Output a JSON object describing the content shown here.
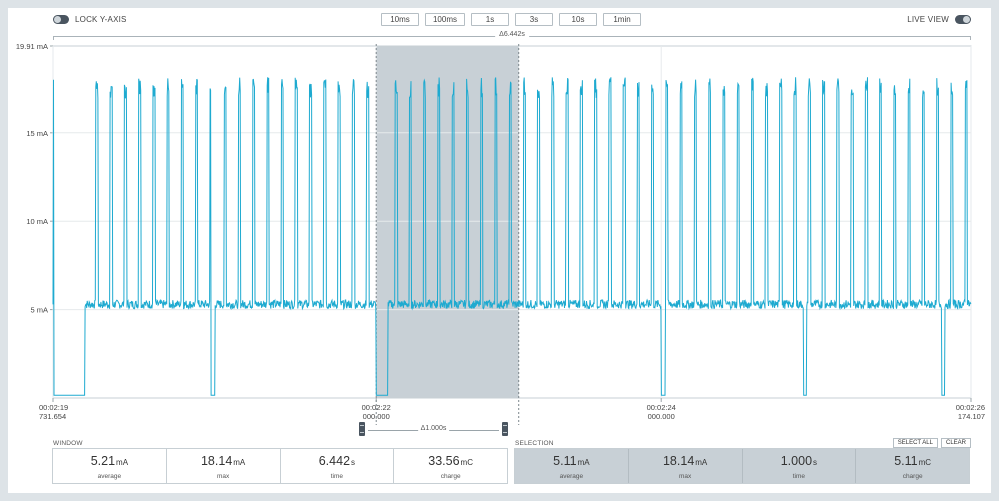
{
  "controls": {
    "lock_y_axis": "LOCK Y-AXIS",
    "live_view": "LIVE VIEW",
    "zoom_buttons": [
      "10ms",
      "100ms",
      "1s",
      "3s",
      "10s",
      "1min"
    ]
  },
  "window_delta": "Δ6.442s",
  "selection_delta": "Δ1.000s",
  "colors": {
    "trace": "#1eaad0",
    "selection": "#c8d0d6",
    "handle": "#4a5560"
  },
  "chart_data": {
    "type": "line",
    "ylabel": "",
    "y_ticks": [
      "19.91 mA",
      "15 mA",
      "10 mA",
      "5 mA"
    ],
    "y_tick_values": [
      19.91,
      15,
      10,
      5
    ],
    "ylim": [
      0,
      19.91
    ],
    "xlim_s": [
      139.731654,
      146.174107
    ],
    "x_ticks": [
      {
        "time": "00:02:19",
        "sub": "731.654",
        "t": 139.731654
      },
      {
        "time": "00:02:22",
        "sub": "000.000",
        "t": 142.0
      },
      {
        "time": "00:02:24",
        "sub": "000.000",
        "t": 144.0
      },
      {
        "time": "00:02:26",
        "sub": "174.107",
        "t": 146.174107
      }
    ],
    "selection_s": [
      142.0,
      143.0
    ],
    "grid": true,
    "series": [
      {
        "baseline_mA": 5.3,
        "spike_max_mA": 18.14,
        "spike_low_mA": 2.5,
        "dropouts_s": [
          [
            139.737,
            139.955
          ],
          [
            140.84,
            140.868
          ],
          [
            142.0,
            142.08
          ],
          [
            144.0,
            144.03
          ],
          [
            145.0,
            145.02
          ],
          [
            145.97,
            145.99
          ]
        ]
      }
    ]
  },
  "window": {
    "title": "WINDOW",
    "stats": [
      {
        "value": "5.21",
        "unit": "mA",
        "label": "average"
      },
      {
        "value": "18.14",
        "unit": "mA",
        "label": "max"
      },
      {
        "value": "6.442",
        "unit": "s",
        "label": "time"
      },
      {
        "value": "33.56",
        "unit": "mC",
        "label": "charge"
      }
    ]
  },
  "selection": {
    "title": "SELECTION",
    "select_all": "SELECT ALL",
    "clear": "CLEAR",
    "stats": [
      {
        "value": "5.11",
        "unit": "mA",
        "label": "average"
      },
      {
        "value": "18.14",
        "unit": "mA",
        "label": "max"
      },
      {
        "value": "1.000",
        "unit": "s",
        "label": "time"
      },
      {
        "value": "5.11",
        "unit": "mC",
        "label": "charge"
      }
    ]
  }
}
